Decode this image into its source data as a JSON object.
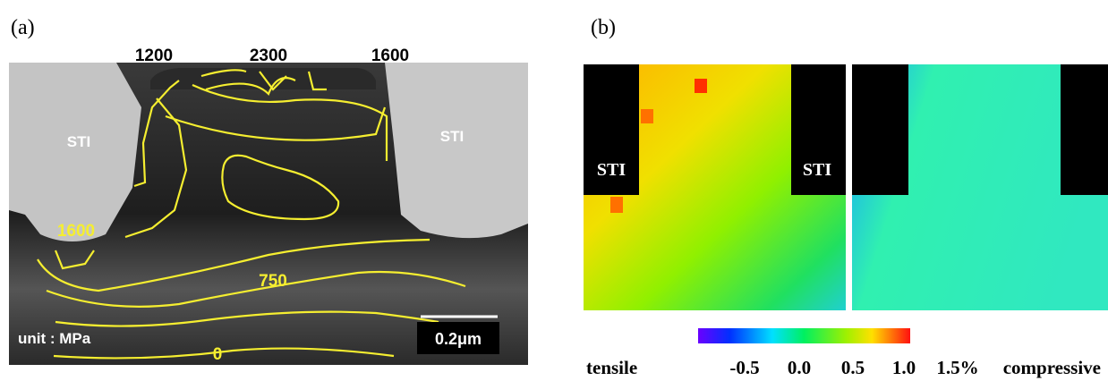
{
  "panel_a": {
    "label": "(a)",
    "top_labels": [
      "1200",
      "2300",
      "1600"
    ],
    "sti_labels": [
      "STI",
      "STI"
    ],
    "contour_labels": [
      "1600",
      "750",
      "0"
    ],
    "unit": "unit : MPa",
    "scale_bar": "0.2μm"
  },
  "panel_b": {
    "label": "(b)",
    "sti_labels": [
      "STI",
      "STI"
    ],
    "colorbar": {
      "left_label": "tensile",
      "tick_labels": [
        "-0.5",
        "0.0",
        "0.5",
        "1.0",
        "1.5%"
      ],
      "right_label": "compressive"
    }
  }
}
